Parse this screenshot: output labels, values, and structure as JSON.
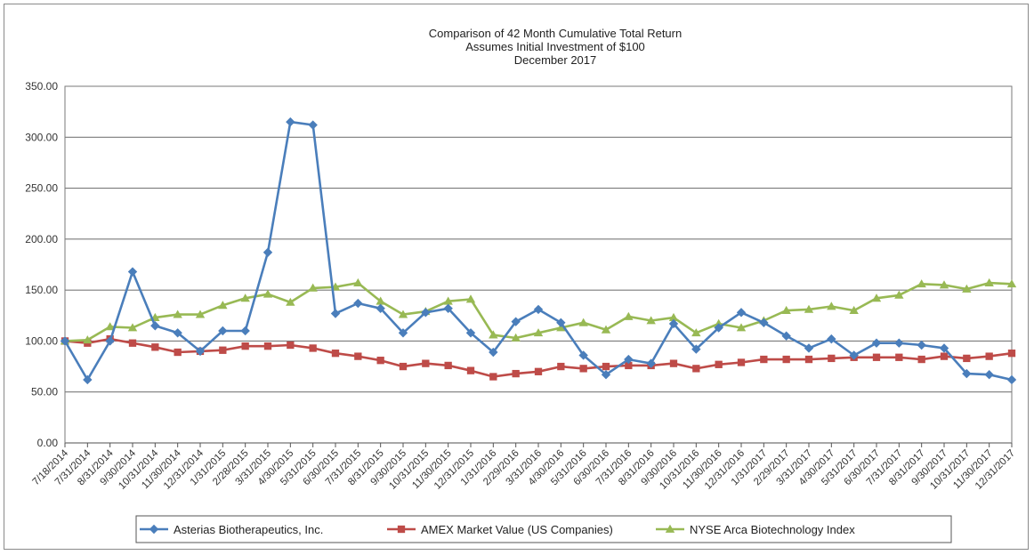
{
  "chart_data": {
    "type": "line",
    "title_lines": [
      "Comparison  of 42 Month  Cumulative  Total  Return",
      "Assumes Initial Investment  of $100",
      "December  2017"
    ],
    "xlabel": "",
    "ylabel": "",
    "ylim": [
      0,
      350
    ],
    "yticks": [
      0,
      50,
      100,
      150,
      200,
      250,
      300,
      350
    ],
    "ytick_labels": [
      "0.00",
      "50.00",
      "100.00",
      "150.00",
      "200.00",
      "250.00",
      "300.00",
      "350.00"
    ],
    "grid": "horizontal",
    "legend_position": "bottom",
    "categories": [
      "7/18/2014",
      "7/31/2014",
      "8/31/2014",
      "9/30/2014",
      "10/31/2014",
      "11/30/2014",
      "12/31/2014",
      "1/31/2015",
      "2/28/2015",
      "3/31/2015",
      "4/30/2015",
      "5/31/2015",
      "6/30/2015",
      "7/31/2015",
      "8/31/2015",
      "9/30/2015",
      "10/31/2015",
      "11/30/2015",
      "12/31/2015",
      "1/31/2016",
      "2/29/2016",
      "3/31/2016",
      "4/30/2016",
      "5/31/2016",
      "6/30/2016",
      "7/31/2016",
      "8/31/2016",
      "9/30/2016",
      "10/31/2016",
      "11/30/2016",
      "12/31/2016",
      "1/31/2017",
      "2/29/2017",
      "3/31/2017",
      "4/30/2017",
      "5/31/2017",
      "6/30/2017",
      "7/31/2017",
      "8/31/2017",
      "9/30/2017",
      "10/31/2017",
      "11/30/2017",
      "12/31/2017"
    ],
    "series": [
      {
        "name": "Asterias Biotherapeutics, Inc.",
        "color": "#4a7ebb",
        "marker": "diamond",
        "values": [
          100,
          62,
          100,
          168,
          115,
          108,
          90,
          110,
          110,
          187,
          315,
          312,
          127,
          137,
          132,
          108,
          128,
          132,
          108,
          89,
          119,
          131,
          118,
          86,
          67,
          82,
          78,
          117,
          92,
          113,
          128,
          118,
          105,
          93,
          102,
          86,
          98,
          98,
          96,
          93,
          68,
          67,
          62
        ]
      },
      {
        "name": "AMEX Market Value (US Companies)",
        "color": "#be4b48",
        "marker": "square",
        "values": [
          100,
          98,
          102,
          98,
          94,
          89,
          90,
          91,
          95,
          95,
          96,
          93,
          88,
          85,
          81,
          75,
          78,
          76,
          71,
          65,
          68,
          70,
          75,
          73,
          75,
          76,
          76,
          78,
          73,
          77,
          79,
          82,
          82,
          82,
          83,
          84,
          84,
          84,
          82,
          85,
          83,
          85,
          88
        ]
      },
      {
        "name": "NYSE Arca Biotechnology Index",
        "color": "#98b954",
        "marker": "triangle",
        "values": [
          100,
          101,
          114,
          113,
          123,
          126,
          126,
          135,
          142,
          146,
          138,
          152,
          153,
          157,
          139,
          126,
          129,
          139,
          141,
          106,
          103,
          108,
          113,
          118,
          111,
          124,
          120,
          123,
          108,
          117,
          113,
          120,
          130,
          131,
          134,
          130,
          142,
          145,
          156,
          155,
          151,
          157,
          156
        ]
      }
    ]
  }
}
